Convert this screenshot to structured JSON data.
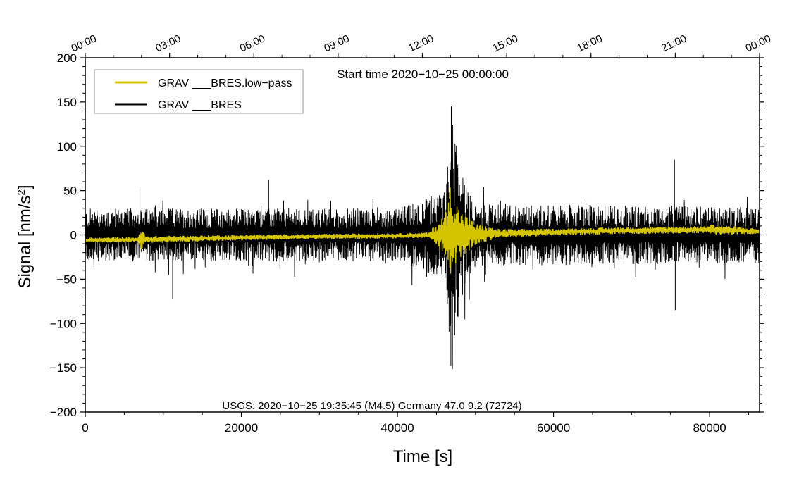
{
  "chart_data": {
    "type": "line",
    "xlabel": "Time [s]",
    "ylabel_main": "Signal [nm/s",
    "ylabel_sup": "2",
    "ylabel_close": "]",
    "xlim": [
      0,
      86400
    ],
    "ylim": [
      -200,
      200
    ],
    "x_ticks": [
      0,
      20000,
      40000,
      60000,
      80000
    ],
    "x_tick_labels": [
      "0",
      "20000",
      "40000",
      "60000",
      "80000"
    ],
    "y_ticks": [
      -200,
      -150,
      -100,
      -50,
      0,
      50,
      100,
      150,
      200
    ],
    "y_tick_labels": [
      "−200",
      "−150",
      "−100",
      "−50",
      "0",
      "50",
      "100",
      "150",
      "200"
    ],
    "top_axis_ticks": [
      0,
      10800,
      21600,
      32400,
      43200,
      54000,
      64800,
      75600,
      86400
    ],
    "top_axis_labels": [
      "00:00",
      "03:00",
      "06:00",
      "09:00",
      "12:00",
      "15:00",
      "18:00",
      "21:00",
      "00:00"
    ],
    "start_time_label": "Start time 2020−10−25 00:00:00",
    "event_annotation": "USGS: 2020−10−25 19:35:45 (M4.5) Germany 47.0 9.2 (72724)",
    "legend_position": "top-left",
    "series": [
      {
        "name": "GRAV ___BRES.low−pass",
        "color": "#d4c400",
        "noise_halfwidth_points": [
          [
            0,
            3
          ],
          [
            6800,
            3
          ],
          [
            7000,
            10
          ],
          [
            7300,
            12
          ],
          [
            7800,
            4
          ],
          [
            20000,
            3
          ],
          [
            44000,
            3
          ],
          [
            46200,
            25
          ],
          [
            46800,
            60
          ],
          [
            47200,
            45
          ],
          [
            48000,
            28
          ],
          [
            50000,
            12
          ],
          [
            53000,
            5
          ],
          [
            60000,
            4
          ],
          [
            75000,
            4
          ],
          [
            79700,
            4
          ],
          [
            80000,
            9
          ],
          [
            80400,
            6
          ],
          [
            86400,
            3
          ]
        ],
        "trend_points": [
          [
            0,
            -6
          ],
          [
            10000,
            -5
          ],
          [
            20000,
            -3
          ],
          [
            30000,
            -2
          ],
          [
            40000,
            -1
          ],
          [
            50000,
            1
          ],
          [
            60000,
            3
          ],
          [
            70000,
            5
          ],
          [
            80000,
            6
          ],
          [
            86400,
            4
          ]
        ]
      },
      {
        "name": "GRAV ___BRES",
        "color": "#000000",
        "noise_halfwidth_points": [
          [
            0,
            30
          ],
          [
            40000,
            30
          ],
          [
            46200,
            50
          ],
          [
            46800,
            140
          ],
          [
            47300,
            120
          ],
          [
            48000,
            80
          ],
          [
            49000,
            50
          ],
          [
            50000,
            35
          ],
          [
            86400,
            32
          ]
        ],
        "envelope_peaks": [
          [
            46900,
            145
          ],
          [
            46850,
            -148
          ],
          [
            7000,
            55
          ],
          [
            11200,
            -72
          ],
          [
            23500,
            62
          ],
          [
            75600,
            -85
          ],
          [
            75500,
            85
          ]
        ]
      }
    ]
  }
}
